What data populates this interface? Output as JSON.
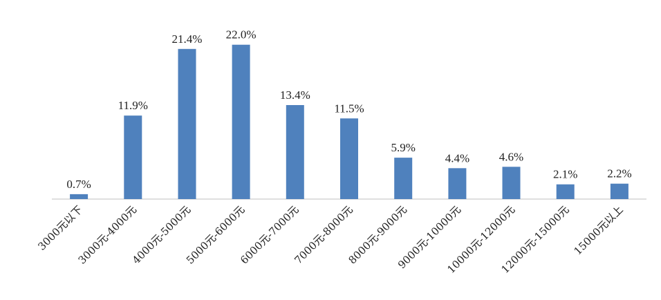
{
  "chart_data": {
    "type": "bar",
    "categories": [
      "3000元以下",
      "3000元-4000元",
      "4000元-5000元",
      "5000元-6000元",
      "6000元-7000元",
      "7000元-8000元",
      "8000元-9000元",
      "9000元-10000元",
      "10000元-12000元",
      "12000元-15000元",
      "15000元以上"
    ],
    "values": [
      0.7,
      11.9,
      21.4,
      22.0,
      13.4,
      11.5,
      5.9,
      4.4,
      4.6,
      2.1,
      2.2
    ],
    "value_labels": [
      "0.7%",
      "11.9%",
      "21.4%",
      "22.0%",
      "13.4%",
      "11.5%",
      "5.9%",
      "4.4%",
      "4.6%",
      "2.1%",
      "2.2%"
    ],
    "title": "",
    "xlabel": "",
    "ylabel": "",
    "ylim": [
      0,
      24
    ],
    "grid": false,
    "legend": "none",
    "bar_color": "#4F81BD",
    "axis_color": "#BFBFBF"
  }
}
